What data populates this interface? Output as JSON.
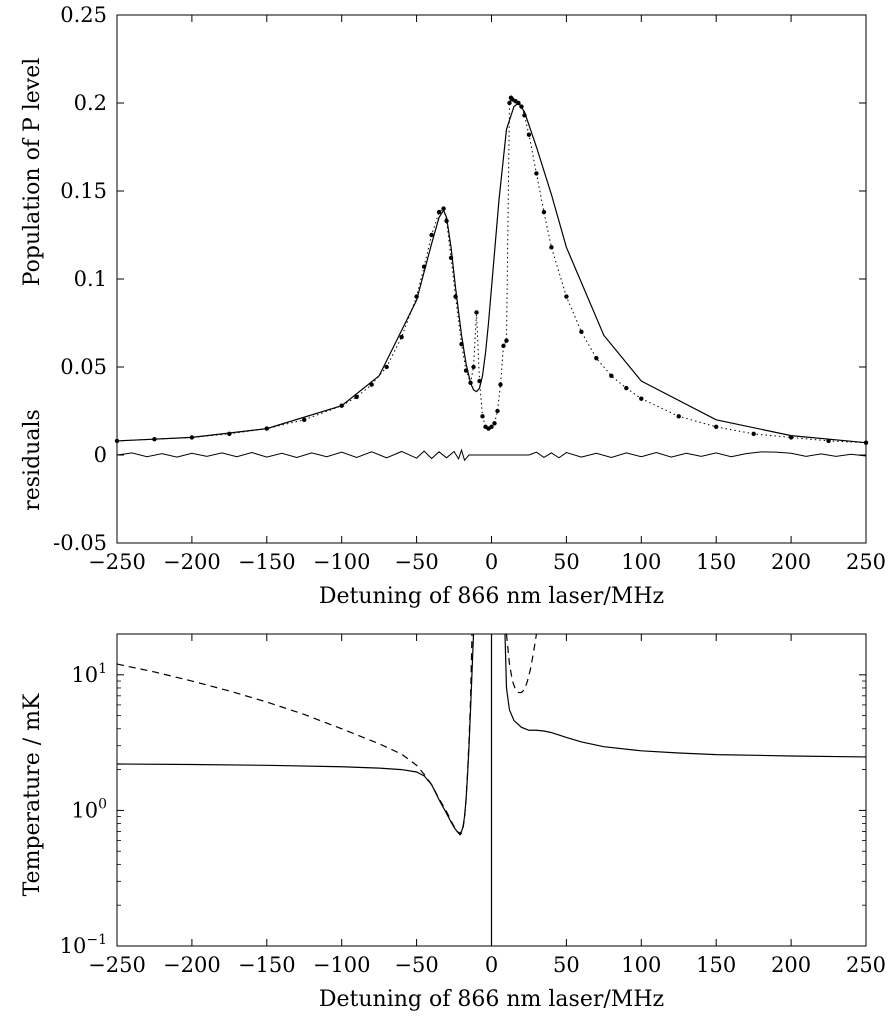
{
  "chart_data": [
    {
      "type": "scatter",
      "xlabel": "Detuning of 866 nm laser/MHz",
      "ylabel": "Population of P level",
      "ylabel_secondary": "residuals",
      "xlim": [
        -250,
        250
      ],
      "ylim": [
        -0.05,
        0.25
      ],
      "x_ticks": [
        -250,
        -200,
        -150,
        -100,
        -50,
        0,
        50,
        100,
        150,
        200,
        250
      ],
      "x_tick_labels": [
        "−250",
        "−200",
        "−150",
        "−100",
        "−50",
        "0",
        "50",
        "100",
        "150",
        "200",
        "250"
      ],
      "y_ticks": [
        -0.05,
        0,
        0.05,
        0.1,
        0.15,
        0.2,
        0.25
      ],
      "y_tick_labels": [
        "-0.05",
        "0",
        "0.05",
        "0.1",
        "0.15",
        "0.2",
        "0.25"
      ],
      "grid": false,
      "series": [
        {
          "style": "dots",
          "x": [
            -250,
            -225,
            -200,
            -175,
            -150,
            -125,
            -100,
            -90,
            -80,
            -70,
            -60,
            -50,
            -45,
            -40,
            -35,
            -32,
            -30,
            -27,
            -24,
            -20,
            -17,
            -14,
            -12,
            -10,
            -8,
            -6,
            -4,
            -2,
            0,
            2,
            4,
            6,
            8,
            10,
            12,
            13,
            14,
            16,
            18,
            20,
            22,
            25,
            30,
            35,
            40,
            50,
            60,
            70,
            80,
            90,
            100,
            125,
            150,
            175,
            200,
            225,
            250
          ],
          "y": [
            0.008,
            0.009,
            0.01,
            0.012,
            0.015,
            0.02,
            0.028,
            0.033,
            0.04,
            0.05,
            0.067,
            0.09,
            0.107,
            0.125,
            0.138,
            0.14,
            0.133,
            0.112,
            0.09,
            0.063,
            0.048,
            0.041,
            0.05,
            0.081,
            0.042,
            0.022,
            0.016,
            0.015,
            0.016,
            0.018,
            0.025,
            0.04,
            0.062,
            0.065,
            0.2,
            0.203,
            0.202,
            0.201,
            0.2,
            0.198,
            0.193,
            0.182,
            0.16,
            0.138,
            0.118,
            0.09,
            0.07,
            0.055,
            0.045,
            0.038,
            0.032,
            0.022,
            0.016,
            0.012,
            0.01,
            0.008,
            0.007
          ]
        },
        {
          "style": "solid-fit",
          "x": [
            -250,
            -200,
            -150,
            -100,
            -75,
            -50,
            -40,
            -35,
            -32,
            -30,
            -27,
            -24,
            -20,
            -17,
            -14,
            -12,
            -10,
            -8,
            -6,
            -4,
            -2,
            0,
            5,
            10,
            15,
            18,
            22,
            30,
            40,
            50,
            75,
            100,
            150,
            200,
            250
          ],
          "y": [
            0.008,
            0.01,
            0.015,
            0.028,
            0.045,
            0.088,
            0.12,
            0.135,
            0.139,
            0.135,
            0.118,
            0.095,
            0.068,
            0.052,
            0.041,
            0.037,
            0.036,
            0.038,
            0.045,
            0.058,
            0.075,
            0.095,
            0.145,
            0.185,
            0.198,
            0.2,
            0.195,
            0.175,
            0.148,
            0.118,
            0.068,
            0.042,
            0.02,
            0.011,
            0.007
          ]
        },
        {
          "style": "residuals",
          "x": [
            -250,
            -240,
            -230,
            -220,
            -210,
            -200,
            -190,
            -180,
            -170,
            -160,
            -150,
            -140,
            -130,
            -120,
            -110,
            -100,
            -90,
            -80,
            -70,
            -60,
            -50,
            -45,
            -40,
            -35,
            -30,
            -25,
            -22,
            -20,
            -18,
            -15,
            -12,
            -10,
            25,
            30,
            35,
            40,
            45,
            50,
            60,
            70,
            80,
            90,
            100,
            110,
            120,
            130,
            140,
            150,
            160,
            170,
            180,
            190,
            200,
            210,
            220,
            230,
            240,
            250
          ],
          "y": [
            0.0,
            0.0012,
            -0.001,
            0.0008,
            -0.0012,
            0.001,
            -0.0008,
            0.0012,
            -0.001,
            0.0014,
            -0.0012,
            0.001,
            -0.0014,
            0.0012,
            -0.001,
            0.0016,
            -0.0014,
            0.0018,
            -0.0016,
            0.002,
            -0.0018,
            0.0022,
            -0.002,
            0.0018,
            -0.0016,
            0.002,
            -0.0022,
            0.0028,
            -0.003,
            0.0,
            0.0,
            0.0,
            0.0,
            0.0016,
            -0.0014,
            0.0012,
            -0.0016,
            0.0014,
            -0.0012,
            0.001,
            -0.0014,
            0.0012,
            -0.001,
            0.0014,
            -0.0012,
            0.001,
            -0.0008,
            0.0012,
            -0.001,
            0.0008,
            0.0018,
            0.0016,
            0.001,
            -0.0008,
            0.0006,
            -0.0008,
            0.0004,
            -0.0006
          ]
        }
      ]
    },
    {
      "type": "line",
      "xlabel": "Detuning of 866 nm laser/MHz",
      "ylabel": "Temperature / mK",
      "xlim": [
        -250,
        250
      ],
      "ylim": [
        0.1,
        20
      ],
      "y_scale": "log",
      "x_ticks": [
        -250,
        -200,
        -150,
        -100,
        -50,
        0,
        50,
        100,
        150,
        200,
        250
      ],
      "x_tick_labels": [
        "−250",
        "−200",
        "−150",
        "−100",
        "−50",
        "0",
        "50",
        "100",
        "150",
        "200",
        "250"
      ],
      "y_ticks": [
        0.1,
        1,
        10
      ],
      "y_tick_labels": [
        {
          "base": "10",
          "exp": "−1"
        },
        {
          "base": "10",
          "exp": "0"
        },
        {
          "base": "10",
          "exp": "1"
        }
      ],
      "grid": false,
      "series": [
        {
          "style": "solid",
          "segments": [
            {
              "x": [
                -250,
                -200,
                -150,
                -100,
                -75,
                -60,
                -50,
                -45,
                -40,
                -35,
                -30,
                -27,
                -25,
                -23,
                -21,
                -20,
                -19,
                -18,
                -17,
                -16,
                -15,
                -14,
                -13,
                -12
              ],
              "y": [
                2.2,
                2.18,
                2.15,
                2.1,
                2.05,
                2.0,
                1.92,
                1.8,
                1.55,
                1.2,
                0.95,
                0.82,
                0.75,
                0.7,
                0.68,
                0.7,
                0.76,
                0.9,
                1.2,
                1.8,
                3.0,
                5.5,
                10.5,
                20
              ]
            },
            {
              "x": [
                0,
                0
              ],
              "y": [
                0.1,
                20
              ]
            },
            {
              "x": [
                9,
                10,
                12,
                15,
                20,
                25,
                30,
                35,
                40,
                50,
                60,
                75,
                100,
                125,
                150,
                200,
                250
              ],
              "y": [
                20,
                8.0,
                5.5,
                4.6,
                4.1,
                3.9,
                3.9,
                3.85,
                3.75,
                3.45,
                3.2,
                2.95,
                2.75,
                2.65,
                2.58,
                2.52,
                2.48
              ]
            }
          ]
        },
        {
          "style": "dashed",
          "segments": [
            {
              "x": [
                -250,
                -225,
                -200,
                -175,
                -150,
                -125,
                -100,
                -75,
                -60,
                -50,
                -45,
                -40,
                -35,
                -30,
                -27,
                -25,
                -23,
                -21,
                -20,
                -19,
                -18,
                -17,
                -16,
                -15,
                -14,
                -13
              ],
              "y": [
                12.0,
                10.5,
                9.0,
                7.6,
                6.3,
                5.1,
                4.0,
                3.1,
                2.6,
                2.15,
                1.85,
                1.55,
                1.22,
                0.98,
                0.84,
                0.76,
                0.7,
                0.66,
                0.68,
                0.74,
                0.88,
                1.2,
                1.9,
                3.3,
                6.5,
                20
              ]
            },
            {
              "x": [
                10,
                12,
                14,
                16,
                18,
                20,
                22,
                24,
                26,
                28,
                30
              ],
              "y": [
                20,
                12.0,
                9.0,
                7.8,
                7.4,
                7.4,
                7.8,
                9.0,
                11.0,
                14.5,
                20
              ]
            }
          ]
        }
      ]
    }
  ]
}
